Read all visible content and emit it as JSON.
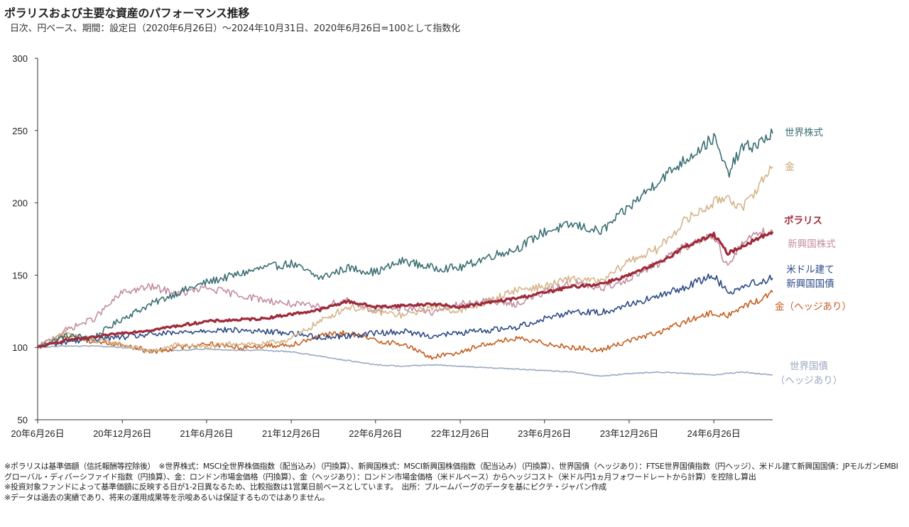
{
  "title": "ポラリスおよび主要な資産のパフォーマンス推移",
  "subtitle": "日次、円ベース、期間：設定日（2020年6月26日）～2024年10月31日、2020年6月26日=100として指数化",
  "notes": [
    "※ポラリスは基準価額（信託報酬等控除後）　※世界株式：MSCI全世界株価指数（配当込み）（円換算）、新興国株式：MSCI新興国株価指数（配当込み）（円換算）、世界国債（ヘッジあり）：FTSE世界国債指数（円ヘッジ）、米ドル建て新興国国債：JPモルガンEMBIグローバル・ディバーシファイド指数（円換算）、金：ロンドン市場金価格（円換算）、金（ヘッジあり）：ロンドン市場金価格（米ドルベース）からヘッジコスト（米ドル円1ヵ月フォワードレートから計算）を控除し算出",
    "※投資対象ファンドによって基準価額に反映する日が1-2日異なるため、比較指数は1営業日前ベースとしています。　出所：ブルームバーグのデータを基にピクテ・ジャパン作成",
    "※データは過去の実績であり、将来の運用成果等を示唆あるいは保証するものではありません。"
  ],
  "chart_data": {
    "type": "line",
    "title": "ポラリスおよび主要な資産のパフォーマンス推移",
    "xlabel": "",
    "ylabel": "",
    "ylim": [
      50,
      300
    ],
    "yticks": [
      "300",
      "250",
      "200",
      "150",
      "100",
      "50"
    ],
    "xticks": [
      "20年6月26日",
      "20年12月26日",
      "21年6月26日",
      "21年12月26日",
      "22年6月26日",
      "22年12月26日",
      "23年6月26日",
      "23年12月26日",
      "24年6月26日"
    ],
    "grid": false,
    "legend": "right-end labels",
    "x": [
      "2020-06-26",
      "2020-08-26",
      "2020-10-26",
      "2020-12-26",
      "2021-02-26",
      "2021-04-26",
      "2021-06-26",
      "2021-08-26",
      "2021-10-26",
      "2021-12-26",
      "2022-02-26",
      "2022-04-26",
      "2022-06-26",
      "2022-08-26",
      "2022-10-26",
      "2022-12-26",
      "2023-02-26",
      "2023-04-26",
      "2023-06-26",
      "2023-08-26",
      "2023-10-26",
      "2023-12-26",
      "2024-02-26",
      "2024-04-26",
      "2024-06-26",
      "2024-07-26",
      "2024-08-26",
      "2024-09-26",
      "2024-10-31"
    ],
    "series": [
      {
        "name": "世界株式",
        "color": "#3b6e73",
        "width": 1.6,
        "values": [
          100,
          108,
          107,
          120,
          130,
          138,
          145,
          150,
          155,
          158,
          148,
          155,
          152,
          160,
          155,
          155,
          163,
          168,
          180,
          185,
          180,
          197,
          215,
          230,
          245,
          220,
          238,
          240,
          248
        ]
      },
      {
        "name": "金",
        "color": "#d4b48a",
        "width": 1.6,
        "values": [
          100,
          110,
          105,
          102,
          97,
          102,
          100,
          103,
          102,
          106,
          118,
          128,
          125,
          122,
          128,
          125,
          132,
          140,
          142,
          148,
          145,
          160,
          168,
          188,
          200,
          205,
          195,
          210,
          225
        ]
      },
      {
        "name": "ポラリス",
        "color": "#9e2b3b",
        "width": 3.2,
        "values": [
          100,
          105,
          107,
          110,
          112,
          115,
          118,
          119,
          120,
          123,
          126,
          132,
          128,
          129,
          130,
          128,
          131,
          134,
          138,
          142,
          144,
          150,
          158,
          170,
          178,
          165,
          170,
          175,
          180
        ]
      },
      {
        "name": "新興国株式",
        "color": "#c28da0",
        "width": 1.6,
        "values": [
          100,
          112,
          120,
          138,
          142,
          137,
          141,
          137,
          133,
          130,
          128,
          133,
          125,
          128,
          124,
          130,
          132,
          130,
          138,
          145,
          140,
          148,
          158,
          170,
          178,
          155,
          172,
          180,
          180
        ]
      },
      {
        "name": "米ドル建て新興国国債",
        "color": "#2c4a86",
        "width": 1.6,
        "values": [
          100,
          104,
          106,
          107,
          109,
          110,
          112,
          112,
          111,
          110,
          107,
          108,
          110,
          111,
          108,
          110,
          112,
          114,
          120,
          125,
          124,
          130,
          135,
          142,
          150,
          138,
          142,
          145,
          148
        ]
      },
      {
        "name": "金（ヘッジあり）",
        "color": "#c45e1f",
        "width": 1.6,
        "values": [
          100,
          108,
          104,
          102,
          97,
          100,
          103,
          100,
          101,
          102,
          108,
          110,
          105,
          102,
          93,
          97,
          103,
          106,
          103,
          100,
          98,
          105,
          110,
          118,
          124,
          122,
          128,
          132,
          138
        ]
      },
      {
        "name": "世界国債（ヘッジあり）",
        "color": "#9aa9c1",
        "width": 1.6,
        "values": [
          100,
          101,
          101,
          100,
          98,
          98,
          99,
          98,
          98,
          97,
          94,
          91,
          88,
          87,
          88,
          87,
          86,
          85,
          84,
          83,
          80,
          82,
          83,
          82,
          81,
          82,
          83,
          82,
          81
        ]
      }
    ],
    "end_labels": [
      {
        "lines": [
          "世界株式"
        ],
        "color": "#3b6e73"
      },
      {
        "lines": [
          "金"
        ],
        "color": "#c9a26c"
      },
      {
        "lines": [
          "ポラリス"
        ],
        "color": "#9e2b3b",
        "bold": true
      },
      {
        "lines": [
          "新興国株式"
        ],
        "color": "#c28da0"
      },
      {
        "lines": [
          "米ドル建て",
          "新興国国債"
        ],
        "color": "#2c4a86"
      },
      {
        "lines": [
          "金（ヘッジあり）"
        ],
        "color": "#c45e1f"
      },
      {
        "lines": [
          "世界国債",
          "（ヘッジあり）"
        ],
        "color": "#9aa9c1"
      }
    ]
  }
}
